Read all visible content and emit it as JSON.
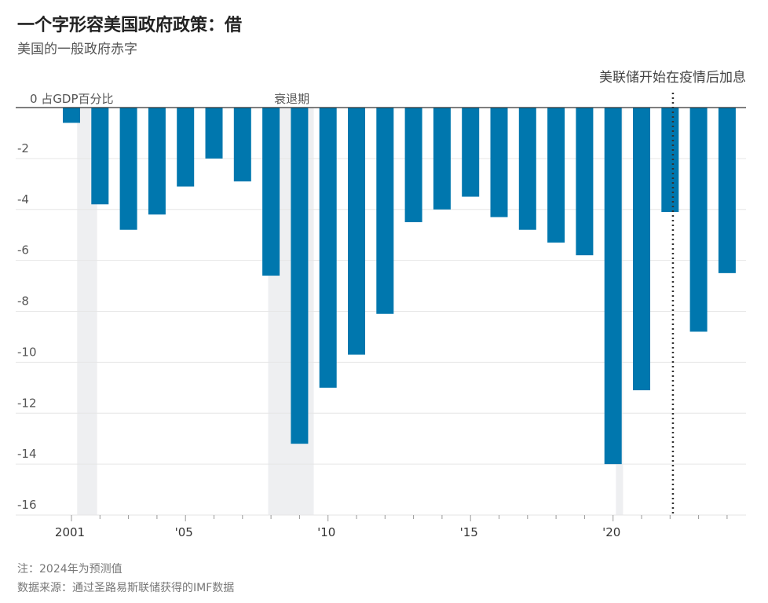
{
  "header": {
    "title": "一个字形容美国政府政策：借",
    "subtitle": "美国的一般政府赤字"
  },
  "chart_data": {
    "type": "bar",
    "unit_label": "0 占GDP百分比",
    "ylim": [
      -16,
      0
    ],
    "yticks": [
      0,
      -2,
      -4,
      -6,
      -8,
      -10,
      -12,
      -14,
      -16
    ],
    "ytick_labels": [
      "",
      "-2",
      "-4",
      "-6",
      "-8",
      "-10",
      "-12",
      "-14",
      "-16"
    ],
    "x": [
      2001,
      2002,
      2003,
      2004,
      2005,
      2006,
      2007,
      2008,
      2009,
      2010,
      2011,
      2012,
      2013,
      2014,
      2015,
      2016,
      2017,
      2018,
      2019,
      2020,
      2021,
      2022,
      2023,
      2024
    ],
    "values": [
      -0.6,
      -3.8,
      -4.8,
      -4.2,
      -3.1,
      -2.0,
      -2.9,
      -6.6,
      -13.2,
      -11.0,
      -9.7,
      -8.1,
      -4.5,
      -4.0,
      -3.5,
      -4.3,
      -4.8,
      -5.3,
      -5.8,
      -14.0,
      -11.1,
      -4.1,
      -8.8,
      -6.5
    ],
    "xtick_labels": [
      {
        "x": 2001,
        "label": "2001"
      },
      {
        "x": 2005,
        "label": "'05"
      },
      {
        "x": 2010,
        "label": "'10"
      },
      {
        "x": 2015,
        "label": "'15"
      },
      {
        "x": 2020,
        "label": "'20"
      }
    ],
    "recessions": [
      {
        "start": 2001.2,
        "end": 2001.9
      },
      {
        "start": 2007.9,
        "end": 2009.5
      },
      {
        "start": 2020.1,
        "end": 2020.35
      }
    ],
    "recession_label": "衰退期",
    "annotation": {
      "x": 2022.1,
      "label": "美联储开始在疫情后加息"
    },
    "colors": {
      "bar": "#0077ae",
      "recession": "#eeeff1",
      "grid": "#e6e6e6",
      "axis": "#333333",
      "text": "#555555"
    },
    "grid": true
  },
  "footer": {
    "note": "注：2024年为预测值",
    "source": "数据来源：通过圣路易斯联储获得的IMF数据"
  }
}
